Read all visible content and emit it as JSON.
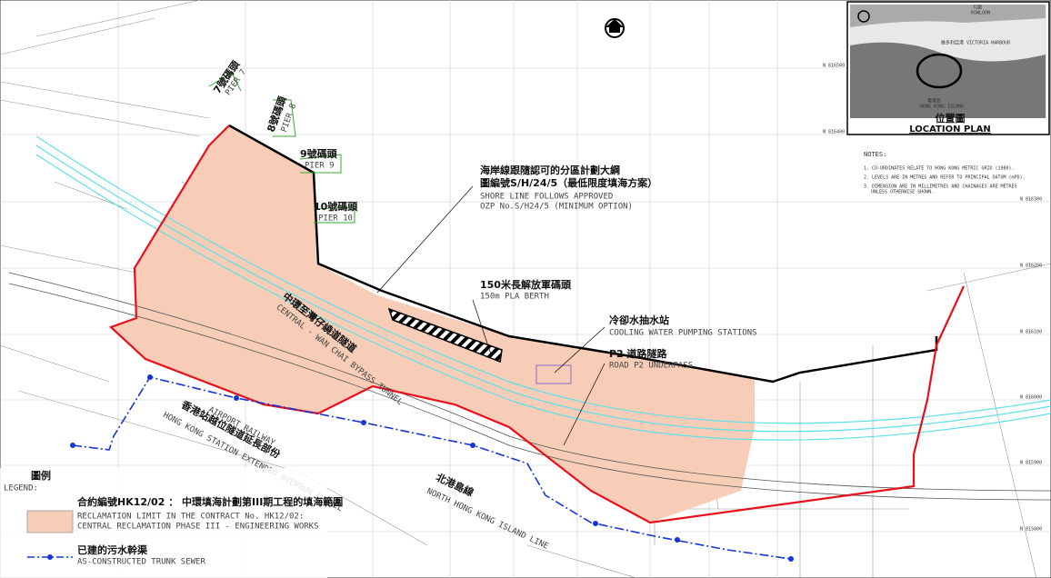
{
  "piers": [
    {
      "zh": "7號碼頭",
      "en": "PIER 7"
    },
    {
      "zh": "8號碼頭",
      "en": "PIER 8"
    },
    {
      "zh": "9號碼頭",
      "en": "PIER 9"
    },
    {
      "zh": "10號碼頭",
      "en": "PIER 10"
    }
  ],
  "annotations": {
    "shoreline": {
      "zh": [
        "海岸線跟隨認可的分區計劃大綱",
        "圖編號S/H/24/5（最低限度填海方案）"
      ],
      "en": [
        "SHORE LINE FOLLOWS APPROVED",
        "OZP No.S/H24/5 (MINIMUM OPTION)"
      ]
    },
    "berth": {
      "zh": "150米長解放軍碼頭",
      "en": "150m PLA BERTH"
    },
    "pumping": {
      "zh": "冷卻水抽水站",
      "en": "COOLING WATER PUMPING STATIONS"
    },
    "underpass": {
      "zh": "P2 道路隧路",
      "en": "ROAD P2 UNDERPASS"
    },
    "bypass": {
      "zh": "中環至灣仔繞道隧道",
      "en": "CENTRAL - WAN CHAI BYPASS TUNNEL"
    },
    "overrun": {
      "zh": "香港站越位隧道延長部份",
      "en1": "HONG KONG STATION EXTENDED OVERRUN TUNNEL",
      "en2": "AIRPORT RAILWAY"
    },
    "nil": {
      "zh": "北港島線",
      "en": "NORTH HONG KONG ISLAND LINE"
    }
  },
  "legend": {
    "title_zh": "圖例",
    "title_en": "LEGEND:",
    "items": [
      {
        "zh": "合約編號HK12/02 ： 中環填海計劃第III期工程的填海範圍",
        "en": [
          "RECLAMATION LIMIT IN THE CONTRACT No. HK12/02:",
          "CENTRAL RECLAMATION PHASE III - ENGINEERING WORKS"
        ]
      },
      {
        "zh": "已建的污水幹渠",
        "en": [
          "AS-CONSTRUCTED TRUNK SEWER"
        ]
      }
    ]
  },
  "location_plan": {
    "title_zh": "位置圖",
    "title_en": "LOCATION PLAN",
    "kowloon_zh": "九龍",
    "kowloon_en": "KOWLOON",
    "harbour": "維多利亞港 VICTORIA HARBOUR",
    "island_zh": "香港島",
    "island_en": "HONG KONG ISLAND"
  },
  "notes": {
    "title": "NOTES:",
    "items": [
      "1. CO-ORDINATES RELATE TO HONG KONG METRIC GRID (1980).",
      "2. LEVELS ARE IN METRES AND REFER TO PRINCIPAL DATUM (mPD).",
      "3. DIMENSION ARE IN MILLIMETRES AND CHAINAGES ARE METRES",
      "UNLESS OTHERWISE SHOWN."
    ]
  },
  "grid_north": [
    "N 816500",
    "N 816400",
    "N 816300",
    "N 816200",
    "N 816100",
    "N 816000",
    "N 815900",
    "N 815800"
  ]
}
